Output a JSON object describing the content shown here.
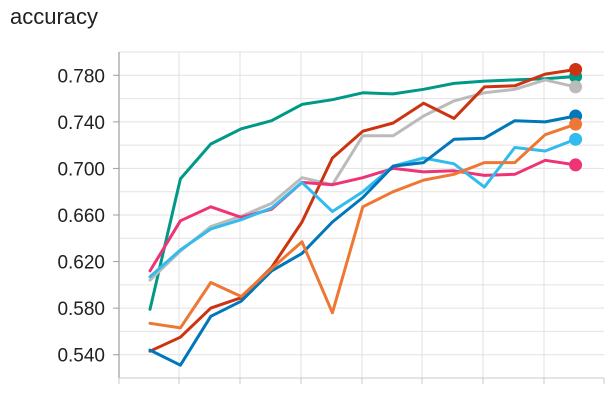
{
  "chart_data": {
    "type": "line",
    "title": "accuracy",
    "xlabel": "",
    "ylabel": "",
    "ylim": [
      0.52,
      0.8
    ],
    "yticks": [
      "0.540",
      "0.580",
      "0.620",
      "0.660",
      "0.700",
      "0.740",
      "0.780"
    ],
    "x": [
      0,
      1,
      2,
      3,
      4,
      5,
      6,
      7,
      8,
      9,
      10,
      11,
      12,
      13,
      14
    ],
    "grid": true,
    "series": [
      {
        "color": "#009988",
        "values": [
          0.579,
          0.691,
          0.721,
          0.734,
          0.741,
          0.755,
          0.759,
          0.765,
          0.764,
          0.768,
          0.773,
          0.775,
          0.776,
          0.777,
          0.779
        ]
      },
      {
        "color": "#BBBBBB",
        "values": [
          0.604,
          0.629,
          0.65,
          0.659,
          0.67,
          0.692,
          0.686,
          0.728,
          0.728,
          0.745,
          0.758,
          0.765,
          0.768,
          0.776,
          0.77
        ]
      },
      {
        "color": "#CC3311",
        "values": [
          0.543,
          0.555,
          0.58,
          0.589,
          0.615,
          0.654,
          0.709,
          0.732,
          0.739,
          0.756,
          0.743,
          0.77,
          0.771,
          0.781,
          0.785
        ]
      },
      {
        "color": "#EE3377",
        "values": [
          0.612,
          0.655,
          0.667,
          0.658,
          0.665,
          0.688,
          0.686,
          0.692,
          0.7,
          0.697,
          0.698,
          0.694,
          0.695,
          0.707,
          0.703
        ]
      },
      {
        "color": "#33BBEE",
        "values": [
          0.607,
          0.63,
          0.648,
          0.656,
          0.666,
          0.688,
          0.663,
          0.68,
          0.702,
          0.709,
          0.704,
          0.684,
          0.718,
          0.715,
          0.725
        ]
      },
      {
        "color": "#0077BB",
        "values": [
          0.544,
          0.531,
          0.573,
          0.586,
          0.612,
          0.627,
          0.654,
          0.675,
          0.702,
          0.705,
          0.725,
          0.726,
          0.741,
          0.74,
          0.745
        ]
      },
      {
        "color": "#EE7733",
        "values": [
          0.567,
          0.563,
          0.602,
          0.59,
          0.614,
          0.637,
          0.576,
          0.667,
          0.68,
          0.69,
          0.695,
          0.705,
          0.705,
          0.729,
          0.738
        ]
      }
    ]
  }
}
